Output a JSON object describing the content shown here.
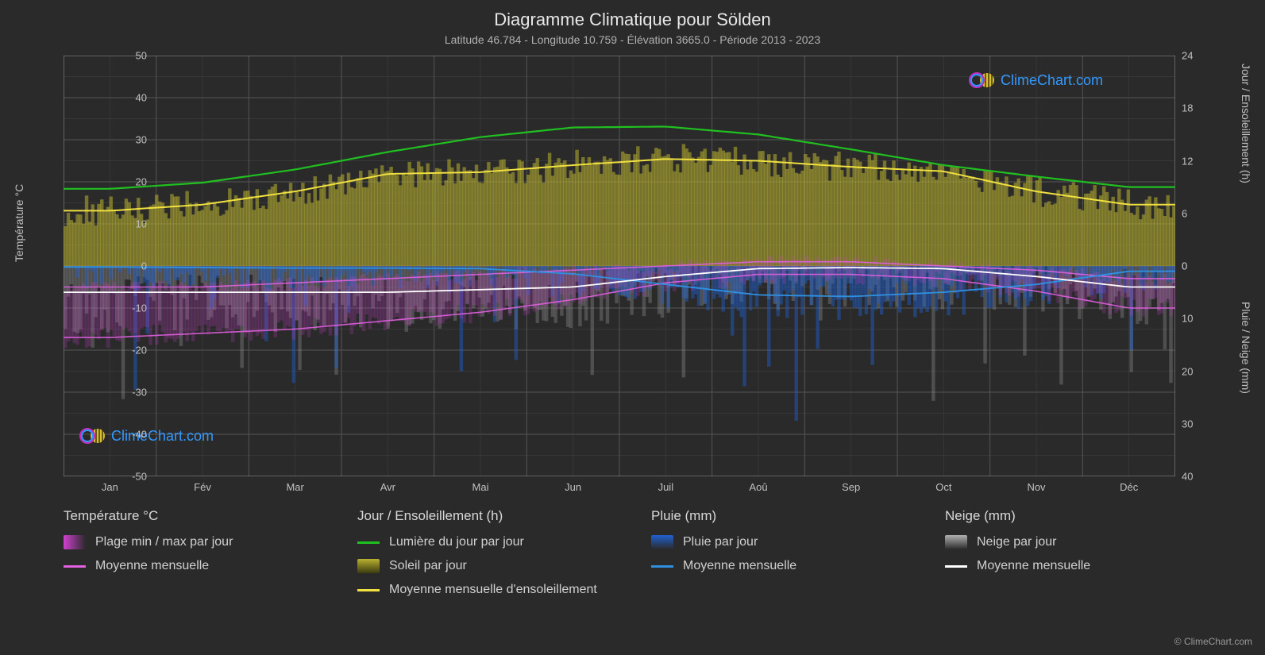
{
  "title": "Diagramme Climatique pour Sölden",
  "subtitle": "Latitude 46.784 - Longitude 10.759 - Élévation 3665.0 - Période 2013 - 2023",
  "axes": {
    "left_label": "Température °C",
    "right_label_top": "Jour / Ensoleillement (h)",
    "right_label_bot": "Pluie / Neige (mm)",
    "left_ticks": [
      50,
      40,
      30,
      20,
      10,
      0,
      -10,
      -20,
      -30,
      -40,
      -50
    ],
    "right_ticks_top": [
      24,
      18,
      12,
      6,
      0
    ],
    "right_ticks_bot": [
      0,
      10,
      20,
      30,
      40
    ],
    "temp_min": -50,
    "temp_max": 50,
    "hours_min": 0,
    "hours_max": 24,
    "precip_min": 0,
    "precip_max": 40,
    "x_months": [
      "Jan",
      "Fév",
      "Mar",
      "Avr",
      "Mai",
      "Jun",
      "Juil",
      "Aoû",
      "Sep",
      "Oct",
      "Nov",
      "Déc"
    ]
  },
  "colors": {
    "bg": "#2a2a2a",
    "grid": "#555555",
    "grid_minor": "#444444",
    "axis_line": "#888888",
    "daylight_line": "#20c020",
    "sun_avg_line": "#f0e040",
    "sun_bar_fill": "#b8b030",
    "temp_range_fill": "#d040d0",
    "temp_avg_line": "#e060e0",
    "rain_bar_fill": "#2060d0",
    "rain_avg_line": "#3090e0",
    "snow_bar_fill": "#b0b0b0",
    "snow_avg_line": "#ffffff",
    "text": "#d0d0d0",
    "brand_blue": "#3399ff"
  },
  "series": {
    "daylight_h": [
      8.8,
      9.5,
      11.0,
      13.0,
      14.7,
      15.8,
      15.9,
      15.0,
      13.3,
      11.5,
      10.2,
      9.0,
      8.5
    ],
    "sun_avg_h": [
      6.3,
      7.0,
      8.5,
      10.5,
      10.7,
      11.5,
      12.2,
      12.0,
      11.3,
      10.8,
      8.5,
      7.0,
      6.0,
      5.5
    ],
    "temp_min_c": [
      -17,
      -16,
      -15,
      -13,
      -11,
      -8,
      -4,
      -2,
      -2,
      -3,
      -6,
      -10,
      -13,
      -15
    ],
    "temp_max_c": [
      -5,
      -5,
      -4,
      -3,
      -2,
      -1,
      0,
      1,
      1,
      0,
      -1,
      -3,
      -4,
      -5,
      -6
    ],
    "temp_avg_c": [
      -11,
      -10.5,
      -9.5,
      -8,
      -6.5,
      -4.5,
      -2,
      -0.5,
      -0.5,
      -1.5,
      -3.5,
      -6.5,
      -8.5,
      -10.5
    ],
    "rain_avg_mm": [
      0.2,
      0.3,
      0.4,
      0.4,
      0.5,
      1.5,
      3.5,
      5.5,
      5.8,
      5.0,
      3.5,
      1.0,
      0.5,
      0.3
    ],
    "snow_avg_mm": [
      5,
      5,
      5,
      5,
      4.5,
      4,
      2,
      0.5,
      0.3,
      0.5,
      2,
      4,
      5,
      5.5
    ]
  },
  "daily_fuzz": {
    "sun_variance_h": 3.5,
    "rain_peak_mm": 22,
    "snow_peak_mm": 28,
    "temp_variance_c": 5
  },
  "legend": {
    "temp_header": "Température °C",
    "temp_range": "Plage min / max par jour",
    "temp_avg": "Moyenne mensuelle",
    "day_header": "Jour / Ensoleillement (h)",
    "daylight": "Lumière du jour par jour",
    "sun_bar": "Soleil par jour",
    "sun_avg": "Moyenne mensuelle d'ensoleillement",
    "rain_header": "Pluie (mm)",
    "rain_bar": "Pluie par jour",
    "rain_avg": "Moyenne mensuelle",
    "snow_header": "Neige (mm)",
    "snow_bar": "Neige par jour",
    "snow_avg": "Moyenne mensuelle"
  },
  "watermark": "ClimeChart.com",
  "copyright": "© ClimeChart.com"
}
